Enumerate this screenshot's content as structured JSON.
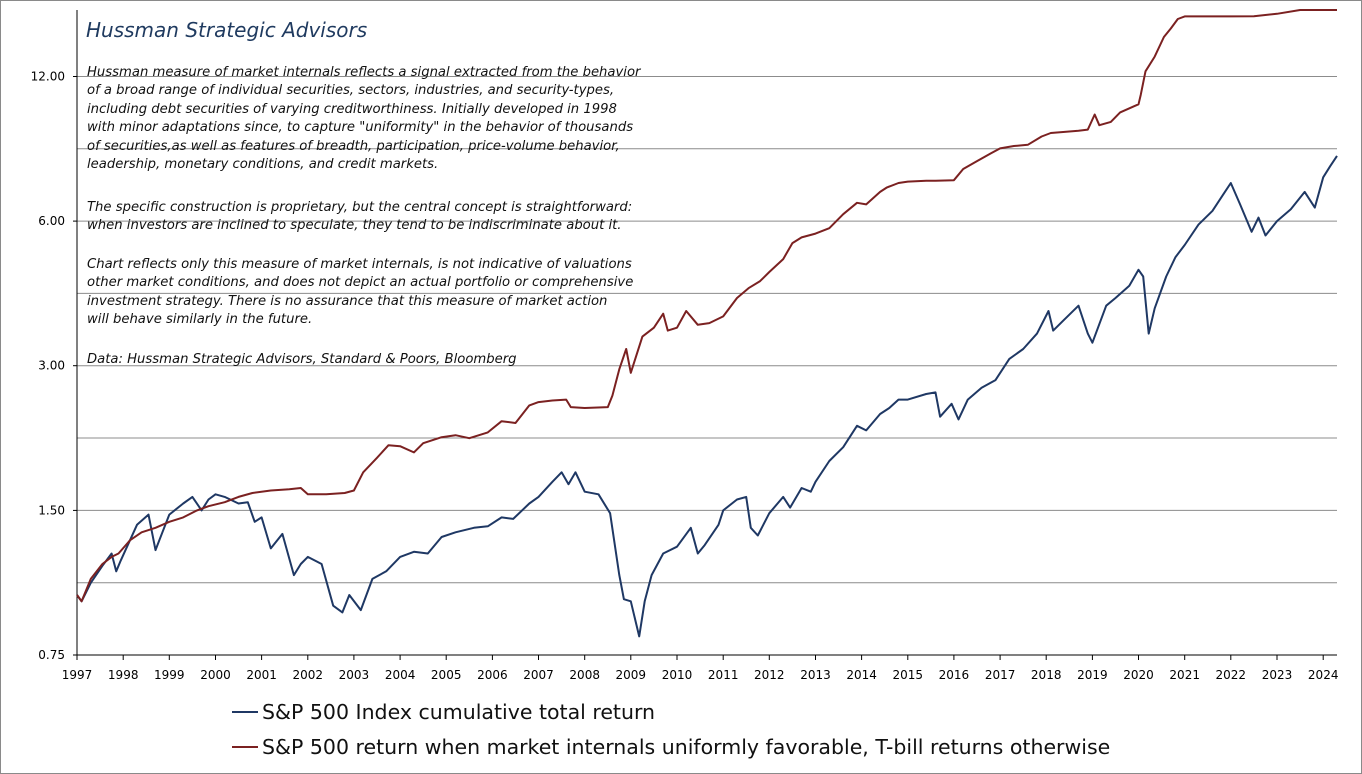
{
  "title": "Hussman Strategic Advisors",
  "notes": [
    [
      "Hussman measure of market internals reflects a signal extracted from the behavior",
      "of a broad range of individual securities, sectors, industries, and security-types,",
      "including debt securities of varying creditworthiness.  Initially developed in 1998",
      "with minor adaptations since, to capture \"uniformity\" in the behavior of thousands",
      "of securities,as well as features of breadth, participation, price-volume behavior,",
      "leadership, monetary conditions, and credit markets."
    ],
    [
      "The specific construction is proprietary, but the central concept is straightforward:",
      "when investors are inclined to speculate, they tend to be indiscriminate about it."
    ],
    [
      "Chart reflects only this measure of market internals, is not indicative of valuations",
      "other market conditions, and does not depict an actual portfolio or comprehensive",
      "investment strategy. There is no assurance that this measure of market action",
      "will behave similarly in the future."
    ],
    [
      "Data: Hussman Strategic Advisors, Standard & Poors, Bloomberg"
    ]
  ],
  "colors": {
    "sp500": "#1f3864",
    "strategy": "#7b2121",
    "grid": "#8c8c8c",
    "axis": "#000000"
  },
  "chart_data": {
    "type": "line",
    "yscale": "log",
    "ylim": [
      0.75,
      16.5
    ],
    "xlim": [
      1997.0,
      2024.3
    ],
    "y_ticks": [
      0.75,
      1.5,
      3.0,
      6.0,
      12.0
    ],
    "y_tick_labels": [
      "0.75",
      "1.50",
      "3.00",
      "6.00",
      "12.00"
    ],
    "x_ticks": [
      1997,
      1998,
      1999,
      2000,
      2001,
      2002,
      2003,
      2004,
      2005,
      2006,
      2007,
      2008,
      2009,
      2010,
      2011,
      2012,
      2013,
      2014,
      2015,
      2016,
      2017,
      2018,
      2019,
      2020,
      2021,
      2022,
      2023,
      2024
    ],
    "x_tick_labels": [
      "1997",
      "1998",
      "1999",
      "2000",
      "2001",
      "2002",
      "2003",
      "2004",
      "2005",
      "2006",
      "2007",
      "2008",
      "2009",
      "2010",
      "2011",
      "2012",
      "2013",
      "2014",
      "2015",
      "2016",
      "2017",
      "2018",
      "2019",
      "2020",
      "2021",
      "2022",
      "2023",
      "2024"
    ],
    "grid": "horizontal",
    "legend_position": "bottom",
    "series": [
      {
        "name": "S&P 500 Index cumulative total return",
        "color": "#1f3864",
        "points": [
          [
            1997.0,
            1.0
          ],
          [
            1997.1,
            0.97
          ],
          [
            1997.3,
            1.06
          ],
          [
            1997.55,
            1.15
          ],
          [
            1997.75,
            1.22
          ],
          [
            1997.85,
            1.12
          ],
          [
            1997.95,
            1.18
          ],
          [
            1998.3,
            1.4
          ],
          [
            1998.55,
            1.47
          ],
          [
            1998.7,
            1.24
          ],
          [
            1998.85,
            1.35
          ],
          [
            1999.0,
            1.47
          ],
          [
            1999.3,
            1.55
          ],
          [
            1999.5,
            1.6
          ],
          [
            1999.7,
            1.5
          ],
          [
            1999.85,
            1.58
          ],
          [
            2000.0,
            1.62
          ],
          [
            2000.2,
            1.6
          ],
          [
            2000.5,
            1.55
          ],
          [
            2000.7,
            1.56
          ],
          [
            2000.85,
            1.42
          ],
          [
            2001.0,
            1.45
          ],
          [
            2001.2,
            1.25
          ],
          [
            2001.45,
            1.34
          ],
          [
            2001.7,
            1.1
          ],
          [
            2001.85,
            1.16
          ],
          [
            2002.0,
            1.2
          ],
          [
            2002.3,
            1.16
          ],
          [
            2002.55,
            0.95
          ],
          [
            2002.75,
            0.92
          ],
          [
            2002.9,
            1.0
          ],
          [
            2003.15,
            0.93
          ],
          [
            2003.4,
            1.08
          ],
          [
            2003.7,
            1.12
          ],
          [
            2004.0,
            1.2
          ],
          [
            2004.3,
            1.23
          ],
          [
            2004.6,
            1.22
          ],
          [
            2004.9,
            1.32
          ],
          [
            2005.2,
            1.35
          ],
          [
            2005.6,
            1.38
          ],
          [
            2005.9,
            1.39
          ],
          [
            2006.2,
            1.45
          ],
          [
            2006.45,
            1.44
          ],
          [
            2006.8,
            1.55
          ],
          [
            2007.0,
            1.6
          ],
          [
            2007.3,
            1.72
          ],
          [
            2007.5,
            1.8
          ],
          [
            2007.65,
            1.7
          ],
          [
            2007.8,
            1.8
          ],
          [
            2008.0,
            1.64
          ],
          [
            2008.3,
            1.62
          ],
          [
            2008.55,
            1.48
          ],
          [
            2008.75,
            1.1
          ],
          [
            2008.85,
            0.98
          ],
          [
            2009.0,
            0.97
          ],
          [
            2009.18,
            0.82
          ],
          [
            2009.3,
            0.97
          ],
          [
            2009.45,
            1.1
          ],
          [
            2009.7,
            1.22
          ],
          [
            2010.0,
            1.26
          ],
          [
            2010.3,
            1.38
          ],
          [
            2010.45,
            1.22
          ],
          [
            2010.6,
            1.27
          ],
          [
            2010.9,
            1.4
          ],
          [
            2011.0,
            1.5
          ],
          [
            2011.3,
            1.58
          ],
          [
            2011.5,
            1.6
          ],
          [
            2011.6,
            1.38
          ],
          [
            2011.75,
            1.33
          ],
          [
            2012.0,
            1.48
          ],
          [
            2012.3,
            1.6
          ],
          [
            2012.45,
            1.52
          ],
          [
            2012.7,
            1.67
          ],
          [
            2012.9,
            1.64
          ],
          [
            2013.0,
            1.72
          ],
          [
            2013.3,
            1.9
          ],
          [
            2013.6,
            2.03
          ],
          [
            2013.9,
            2.25
          ],
          [
            2014.1,
            2.2
          ],
          [
            2014.4,
            2.38
          ],
          [
            2014.6,
            2.45
          ],
          [
            2014.8,
            2.55
          ],
          [
            2015.0,
            2.55
          ],
          [
            2015.4,
            2.62
          ],
          [
            2015.6,
            2.64
          ],
          [
            2015.7,
            2.35
          ],
          [
            2015.95,
            2.5
          ],
          [
            2016.1,
            2.32
          ],
          [
            2016.3,
            2.55
          ],
          [
            2016.6,
            2.7
          ],
          [
            2016.9,
            2.8
          ],
          [
            2017.2,
            3.1
          ],
          [
            2017.5,
            3.25
          ],
          [
            2017.8,
            3.5
          ],
          [
            2018.05,
            3.9
          ],
          [
            2018.15,
            3.55
          ],
          [
            2018.4,
            3.75
          ],
          [
            2018.7,
            4.0
          ],
          [
            2018.9,
            3.5
          ],
          [
            2019.0,
            3.35
          ],
          [
            2019.3,
            4.0
          ],
          [
            2019.5,
            4.15
          ],
          [
            2019.8,
            4.4
          ],
          [
            2020.0,
            4.75
          ],
          [
            2020.1,
            4.6
          ],
          [
            2020.22,
            3.5
          ],
          [
            2020.35,
            3.95
          ],
          [
            2020.6,
            4.6
          ],
          [
            2020.8,
            5.05
          ],
          [
            2021.0,
            5.35
          ],
          [
            2021.3,
            5.9
          ],
          [
            2021.6,
            6.3
          ],
          [
            2021.85,
            6.85
          ],
          [
            2022.0,
            7.2
          ],
          [
            2022.2,
            6.5
          ],
          [
            2022.45,
            5.7
          ],
          [
            2022.6,
            6.1
          ],
          [
            2022.75,
            5.6
          ],
          [
            2023.0,
            6.0
          ],
          [
            2023.3,
            6.35
          ],
          [
            2023.6,
            6.9
          ],
          [
            2023.82,
            6.4
          ],
          [
            2024.0,
            7.4
          ],
          [
            2024.15,
            7.8
          ],
          [
            2024.3,
            8.2
          ]
        ]
      },
      {
        "name": "S&P 500 return when market internals uniformly favorable, T-bill returns otherwise",
        "color": "#7b2121",
        "points": [
          [
            1997.0,
            1.0
          ],
          [
            1997.1,
            0.97
          ],
          [
            1997.3,
            1.08
          ],
          [
            1997.55,
            1.16
          ],
          [
            1997.75,
            1.2
          ],
          [
            1997.9,
            1.22
          ],
          [
            1998.15,
            1.3
          ],
          [
            1998.4,
            1.35
          ],
          [
            1998.7,
            1.38
          ],
          [
            1999.0,
            1.42
          ],
          [
            1999.3,
            1.45
          ],
          [
            1999.6,
            1.5
          ],
          [
            1999.85,
            1.53
          ],
          [
            2000.2,
            1.56
          ],
          [
            2000.5,
            1.6
          ],
          [
            2000.8,
            1.63
          ],
          [
            2001.2,
            1.65
          ],
          [
            2001.6,
            1.66
          ],
          [
            2001.85,
            1.67
          ],
          [
            2002.0,
            1.62
          ],
          [
            2002.4,
            1.62
          ],
          [
            2002.8,
            1.63
          ],
          [
            2003.0,
            1.65
          ],
          [
            2003.2,
            1.8
          ],
          [
            2003.5,
            1.93
          ],
          [
            2003.75,
            2.05
          ],
          [
            2004.0,
            2.04
          ],
          [
            2004.3,
            1.98
          ],
          [
            2004.5,
            2.07
          ],
          [
            2004.9,
            2.13
          ],
          [
            2005.2,
            2.15
          ],
          [
            2005.5,
            2.12
          ],
          [
            2005.9,
            2.18
          ],
          [
            2006.2,
            2.3
          ],
          [
            2006.5,
            2.28
          ],
          [
            2006.8,
            2.48
          ],
          [
            2007.0,
            2.52
          ],
          [
            2007.3,
            2.54
          ],
          [
            2007.6,
            2.55
          ],
          [
            2007.7,
            2.46
          ],
          [
            2008.0,
            2.45
          ],
          [
            2008.5,
            2.46
          ],
          [
            2008.6,
            2.6
          ],
          [
            2008.75,
            2.95
          ],
          [
            2008.9,
            3.25
          ],
          [
            2009.0,
            2.9
          ],
          [
            2009.25,
            3.45
          ],
          [
            2009.5,
            3.6
          ],
          [
            2009.7,
            3.85
          ],
          [
            2009.8,
            3.55
          ],
          [
            2010.0,
            3.6
          ],
          [
            2010.2,
            3.9
          ],
          [
            2010.45,
            3.65
          ],
          [
            2010.7,
            3.68
          ],
          [
            2011.0,
            3.8
          ],
          [
            2011.3,
            4.15
          ],
          [
            2011.55,
            4.35
          ],
          [
            2011.8,
            4.5
          ],
          [
            2012.0,
            4.7
          ],
          [
            2012.3,
            5.0
          ],
          [
            2012.5,
            5.4
          ],
          [
            2012.7,
            5.55
          ],
          [
            2013.0,
            5.65
          ],
          [
            2013.3,
            5.8
          ],
          [
            2013.6,
            6.2
          ],
          [
            2013.9,
            6.55
          ],
          [
            2014.1,
            6.5
          ],
          [
            2014.4,
            6.9
          ],
          [
            2014.55,
            7.05
          ],
          [
            2014.8,
            7.2
          ],
          [
            2015.0,
            7.25
          ],
          [
            2015.4,
            7.28
          ],
          [
            2015.6,
            7.28
          ],
          [
            2016.0,
            7.3
          ],
          [
            2016.2,
            7.7
          ],
          [
            2016.5,
            8.0
          ],
          [
            2016.8,
            8.3
          ],
          [
            2017.0,
            8.5
          ],
          [
            2017.3,
            8.6
          ],
          [
            2017.6,
            8.65
          ],
          [
            2017.9,
            9.0
          ],
          [
            2018.1,
            9.15
          ],
          [
            2018.4,
            9.2
          ],
          [
            2018.7,
            9.25
          ],
          [
            2018.9,
            9.3
          ],
          [
            2019.05,
            10.0
          ],
          [
            2019.15,
            9.5
          ],
          [
            2019.4,
            9.65
          ],
          [
            2019.6,
            10.1
          ],
          [
            2019.9,
            10.4
          ],
          [
            2020.0,
            10.5
          ],
          [
            2020.05,
            11.0
          ],
          [
            2020.15,
            12.3
          ],
          [
            2020.35,
            13.2
          ],
          [
            2020.55,
            14.5
          ],
          [
            2020.7,
            15.1
          ],
          [
            2020.85,
            15.8
          ],
          [
            2021.0,
            16.0
          ],
          [
            2021.5,
            16.0
          ],
          [
            2022.0,
            16.0
          ],
          [
            2022.5,
            16.02
          ],
          [
            2023.0,
            16.2
          ],
          [
            2023.5,
            16.8
          ],
          [
            2024.0,
            17.5
          ],
          [
            2024.3,
            18.0
          ]
        ]
      }
    ]
  }
}
